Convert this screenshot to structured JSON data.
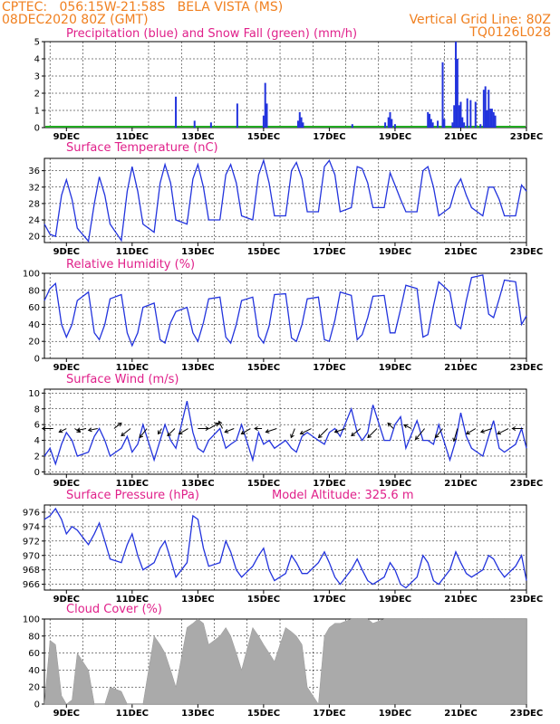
{
  "header": {
    "line1": "CPTEC:   056:15W-21:58S   BELA VISTA (MS)",
    "line2_left": "08DEC2020 80Z (GMT)",
    "line2_right": "Vertical Grid Line: 80Z",
    "line3_right": "TQ0126L028"
  },
  "colors": {
    "header": "#f08020",
    "title": "#e0208a",
    "line": "#2233dd",
    "snow": "#22aa22",
    "cloud": "#aaaaaa"
  },
  "x_ticks": [
    "9DEC",
    "11DEC",
    "13DEC",
    "15DEC",
    "17DEC",
    "19DEC",
    "21DEC",
    "23DEC"
  ],
  "x_range_days": [
    8.33,
    23.0
  ],
  "chart_data": [
    {
      "type": "bar",
      "title": "Precipitation (blue) and Snow Fall (green) (mm/h)",
      "ylim": [
        0,
        5
      ],
      "yticks": [
        0,
        1,
        2,
        3,
        4,
        5
      ],
      "series": [
        {
          "name": "precipitation",
          "x": [
            12.33,
            12.9,
            13.4,
            14.2,
            15.0,
            15.05,
            15.1,
            16.05,
            16.1,
            16.15,
            16.2,
            17.7,
            18.7,
            18.8,
            18.85,
            18.9,
            19.0,
            20.0,
            20.05,
            20.1,
            20.15,
            20.3,
            20.45,
            20.5,
            20.75,
            20.8,
            20.85,
            20.9,
            20.95,
            21.0,
            21.05,
            21.1,
            21.2,
            21.3,
            21.45,
            21.6,
            21.7,
            21.75,
            21.8,
            21.85,
            21.9,
            21.95,
            22.0,
            22.05
          ],
          "values": [
            1.8,
            0.4,
            0.3,
            1.4,
            0.7,
            2.6,
            1.4,
            0.4,
            0.9,
            0.6,
            0.3,
            0.2,
            0.3,
            0.6,
            0.9,
            0.5,
            0.2,
            0.9,
            0.8,
            0.5,
            0.3,
            0.4,
            3.8,
            0.5,
            0.3,
            1.3,
            5.0,
            4.0,
            1.3,
            1.5,
            0.6,
            0.3,
            1.7,
            1.6,
            1.5,
            0.2,
            2.2,
            2.4,
            1.0,
            2.2,
            1.1,
            1.1,
            0.9,
            0.7
          ]
        }
      ]
    },
    {
      "type": "line",
      "title": "Surface Temperature (nC)",
      "ylim": [
        18.5,
        39
      ],
      "yticks": [
        20,
        24,
        28,
        32,
        36
      ],
      "x": [
        8.33,
        8.5,
        8.67,
        8.85,
        9.0,
        9.17,
        9.33,
        9.67,
        9.85,
        10.0,
        10.17,
        10.33,
        10.67,
        10.85,
        11.0,
        11.17,
        11.33,
        11.67,
        11.85,
        12.0,
        12.17,
        12.33,
        12.67,
        12.85,
        13.0,
        13.17,
        13.33,
        13.67,
        13.85,
        14.0,
        14.17,
        14.33,
        14.67,
        14.85,
        15.0,
        15.17,
        15.33,
        15.67,
        15.85,
        16.0,
        16.17,
        16.33,
        16.67,
        16.85,
        17.0,
        17.17,
        17.33,
        17.67,
        17.85,
        18.0,
        18.17,
        18.33,
        18.67,
        18.85,
        19.0,
        19.17,
        19.33,
        19.67,
        19.85,
        20.0,
        20.17,
        20.33,
        20.67,
        20.85,
        21.0,
        21.17,
        21.33,
        21.67,
        21.85,
        22.0,
        22.17,
        22.33,
        22.67,
        22.85,
        23.0
      ],
      "values": [
        23.0,
        20.5,
        20.0,
        30.0,
        33.8,
        29.0,
        22.0,
        18.8,
        28.0,
        34.5,
        30.0,
        23.0,
        19.0,
        31.0,
        37.0,
        31.0,
        23.0,
        21.0,
        33.0,
        37.5,
        33.0,
        24.0,
        23.0,
        34.0,
        37.5,
        32.0,
        24.0,
        24.0,
        35.0,
        37.5,
        33.0,
        25.0,
        24.0,
        35.0,
        38.5,
        33.0,
        25.0,
        25.0,
        36.0,
        38.0,
        34.0,
        26.0,
        26.0,
        37.0,
        38.5,
        35.0,
        26.0,
        27.0,
        37.0,
        36.5,
        33.0,
        27.0,
        27.0,
        35.5,
        32.5,
        29.0,
        26.0,
        26.0,
        36.0,
        37.0,
        32.0,
        25.0,
        27.0,
        32.0,
        34.0,
        30.0,
        27.0,
        25.0,
        32.0,
        32.0,
        29.0,
        25.0,
        25.0,
        32.5,
        31.0
      ]
    },
    {
      "type": "line",
      "title": "Relative Humidity (%)",
      "ylim": [
        0,
        100
      ],
      "yticks": [
        0,
        20,
        40,
        60,
        80,
        100
      ],
      "x": [
        8.33,
        8.5,
        8.67,
        8.85,
        9.0,
        9.17,
        9.33,
        9.67,
        9.85,
        10.0,
        10.17,
        10.33,
        10.67,
        10.85,
        11.0,
        11.17,
        11.33,
        11.67,
        11.85,
        12.0,
        12.17,
        12.33,
        12.67,
        12.85,
        13.0,
        13.17,
        13.33,
        13.67,
        13.85,
        14.0,
        14.17,
        14.33,
        14.67,
        14.85,
        15.0,
        15.17,
        15.33,
        15.67,
        15.85,
        16.0,
        16.17,
        16.33,
        16.67,
        16.85,
        17.0,
        17.17,
        17.33,
        17.67,
        17.85,
        18.0,
        18.17,
        18.33,
        18.67,
        18.85,
        19.0,
        19.17,
        19.33,
        19.67,
        19.85,
        20.0,
        20.17,
        20.33,
        20.67,
        20.85,
        21.0,
        21.17,
        21.33,
        21.67,
        21.85,
        22.0,
        22.17,
        22.33,
        22.67,
        22.85,
        23.0
      ],
      "values": [
        68.0,
        82.0,
        88.0,
        40.0,
        25.0,
        40.0,
        68.0,
        78.0,
        30.0,
        22.0,
        40.0,
        70.0,
        75.0,
        30.0,
        15.0,
        30.0,
        60.0,
        65.0,
        22.0,
        18.0,
        42.0,
        55.0,
        60.0,
        30.0,
        20.0,
        42.0,
        70.0,
        72.0,
        25.0,
        18.0,
        40.0,
        68.0,
        72.0,
        26.0,
        18.0,
        38.0,
        75.0,
        76.0,
        24.0,
        20.0,
        40.0,
        70.0,
        72.0,
        22.0,
        20.0,
        45.0,
        78.0,
        74.0,
        22.0,
        28.0,
        48.0,
        73.0,
        74.0,
        30.0,
        30.0,
        58.0,
        86.0,
        82.0,
        25.0,
        28.0,
        62.0,
        90.0,
        78.0,
        40.0,
        35.0,
        68.0,
        95.0,
        98.0,
        52.0,
        48.0,
        70.0,
        92.0,
        90.0,
        40.0,
        50.0
      ]
    },
    {
      "type": "line",
      "title": "Surface Wind (m/s)",
      "ylim": [
        -0.3,
        10.5
      ],
      "yticks": [
        0,
        2,
        4,
        6,
        8,
        10
      ],
      "x": [
        8.33,
        8.5,
        8.67,
        8.85,
        9.0,
        9.17,
        9.33,
        9.67,
        9.85,
        10.0,
        10.17,
        10.33,
        10.67,
        10.85,
        11.0,
        11.17,
        11.33,
        11.67,
        11.85,
        12.0,
        12.17,
        12.33,
        12.67,
        12.85,
        13.0,
        13.17,
        13.33,
        13.67,
        13.85,
        14.0,
        14.17,
        14.33,
        14.67,
        14.85,
        15.0,
        15.17,
        15.33,
        15.67,
        15.85,
        16.0,
        16.17,
        16.33,
        16.67,
        16.85,
        17.0,
        17.17,
        17.33,
        17.67,
        17.85,
        18.0,
        18.17,
        18.33,
        18.67,
        18.85,
        19.0,
        19.17,
        19.33,
        19.67,
        19.85,
        20.0,
        20.17,
        20.33,
        20.67,
        20.85,
        21.0,
        21.17,
        21.33,
        21.67,
        21.85,
        22.0,
        22.17,
        22.33,
        22.67,
        22.85,
        23.0
      ],
      "values": [
        2.0,
        3.0,
        1.0,
        3.5,
        5.0,
        4.0,
        2.0,
        2.5,
        4.5,
        5.5,
        4.0,
        2.0,
        3.0,
        4.5,
        2.5,
        3.5,
        6.0,
        1.5,
        4.0,
        6.0,
        4.0,
        3.0,
        9.0,
        5.0,
        3.0,
        2.5,
        4.0,
        5.5,
        3.0,
        3.5,
        4.0,
        6.0,
        1.5,
        5.0,
        3.5,
        4.0,
        3.0,
        4.0,
        3.0,
        2.5,
        4.5,
        5.0,
        4.0,
        3.5,
        5.0,
        5.5,
        4.5,
        8.0,
        5.0,
        4.0,
        5.0,
        8.5,
        4.0,
        4.0,
        6.0,
        7.0,
        3.0,
        6.5,
        4.0,
        4.0,
        3.5,
        6.0,
        1.5,
        4.0,
        7.5,
        4.5,
        3.0,
        2.0,
        4.5,
        6.5,
        3.0,
        2.5,
        3.5,
        5.5,
        3.0
      ]
    },
    {
      "type": "line",
      "title": "Surface Pressure (hPa)",
      "annotation": "Model Altitude: 325.6 m",
      "ylim": [
        965.2,
        977
      ],
      "yticks": [
        966,
        968,
        970,
        972,
        974,
        976
      ],
      "x": [
        8.33,
        8.5,
        8.67,
        8.85,
        9.0,
        9.17,
        9.33,
        9.67,
        9.85,
        10.0,
        10.17,
        10.33,
        10.67,
        10.85,
        11.0,
        11.17,
        11.33,
        11.67,
        11.85,
        12.0,
        12.17,
        12.33,
        12.67,
        12.85,
        13.0,
        13.17,
        13.33,
        13.67,
        13.85,
        14.0,
        14.17,
        14.33,
        14.67,
        14.85,
        15.0,
        15.17,
        15.33,
        15.67,
        15.85,
        16.0,
        16.17,
        16.33,
        16.67,
        16.85,
        17.0,
        17.17,
        17.33,
        17.67,
        17.85,
        18.0,
        18.17,
        18.33,
        18.67,
        18.85,
        19.0,
        19.17,
        19.33,
        19.67,
        19.85,
        20.0,
        20.17,
        20.33,
        20.67,
        20.85,
        21.0,
        21.17,
        21.33,
        21.67,
        21.85,
        22.0,
        22.17,
        22.33,
        22.67,
        22.85,
        23.0
      ],
      "values": [
        975.0,
        975.5,
        976.5,
        975.0,
        973.0,
        974.0,
        973.5,
        971.5,
        973.0,
        974.5,
        972.0,
        969.5,
        969.0,
        971.5,
        973.0,
        970.0,
        968.0,
        969.0,
        971.0,
        972.0,
        969.5,
        967.0,
        969.0,
        975.5,
        975.0,
        971.0,
        968.5,
        969.0,
        972.0,
        970.5,
        968.0,
        967.0,
        968.5,
        970.0,
        971.0,
        968.0,
        966.5,
        967.5,
        970.0,
        969.0,
        967.5,
        967.5,
        969.0,
        970.5,
        969.0,
        967.0,
        966.0,
        968.0,
        969.5,
        968.0,
        966.5,
        966.0,
        967.0,
        969.0,
        968.0,
        966.0,
        965.5,
        967.0,
        970.0,
        969.0,
        966.5,
        966.0,
        968.0,
        970.5,
        969.0,
        967.5,
        967.0,
        968.0,
        970.0,
        969.5,
        968.0,
        967.0,
        968.5,
        970.0,
        966.5
      ]
    },
    {
      "type": "area",
      "title": "Cloud Cover (%)",
      "ylim": [
        0,
        100
      ],
      "yticks": [
        0,
        20,
        40,
        60,
        80,
        100
      ],
      "x": [
        8.33,
        8.5,
        8.67,
        8.85,
        9.0,
        9.17,
        9.33,
        9.67,
        9.85,
        10.0,
        10.17,
        10.33,
        10.67,
        10.85,
        11.0,
        11.17,
        11.33,
        11.67,
        11.85,
        12.0,
        12.17,
        12.33,
        12.67,
        12.85,
        13.0,
        13.17,
        13.33,
        13.67,
        13.85,
        14.0,
        14.17,
        14.33,
        14.67,
        14.85,
        15.0,
        15.17,
        15.33,
        15.67,
        15.85,
        16.0,
        16.17,
        16.33,
        16.67,
        16.85,
        17.0,
        17.17,
        17.33,
        17.67,
        17.85,
        18.0,
        18.17,
        18.33,
        18.67,
        18.85,
        19.0,
        19.17,
        19.33,
        19.67,
        19.85,
        20.0,
        20.17,
        20.33,
        20.67,
        20.85,
        21.0,
        21.17,
        21.33,
        21.67,
        21.85,
        22.0,
        22.17,
        22.33,
        22.67,
        22.85,
        23.0
      ],
      "values": [
        0,
        75,
        70,
        10,
        0,
        5,
        60,
        40,
        0,
        0,
        0,
        20,
        15,
        0,
        0,
        0,
        0,
        80,
        70,
        60,
        40,
        20,
        90,
        95,
        100,
        95,
        70,
        80,
        90,
        80,
        60,
        40,
        90,
        80,
        70,
        60,
        50,
        90,
        85,
        80,
        70,
        20,
        0,
        80,
        90,
        95,
        95,
        100,
        100,
        100,
        100,
        95,
        100,
        100,
        100,
        100,
        100,
        100,
        100,
        100,
        100,
        100,
        100,
        100,
        100,
        100,
        100,
        100,
        100,
        100,
        100,
        100,
        100,
        100,
        100
      ]
    }
  ],
  "wind_barbs": {
    "x": [
      8.6,
      9.0,
      9.25,
      9.6,
      9.95,
      10.45,
      10.95,
      11.45,
      11.9,
      12.3,
      12.7,
      13.0,
      13.35,
      13.75,
      14.1,
      14.6,
      14.95,
      15.4,
      15.95,
      16.45,
      16.95,
      17.5,
      17.95,
      18.45,
      18.95,
      19.5,
      19.9,
      20.45,
      20.9,
      21.45,
      21.95,
      22.45,
      22.9
    ],
    "dx": [
      -6,
      -4,
      3,
      -5,
      -5,
      4,
      -5,
      -4,
      -2,
      -4,
      -5,
      6,
      5,
      -2,
      -5,
      -5,
      -4,
      -6,
      -2,
      -6,
      -5,
      -6,
      -5,
      -5,
      -3,
      -4,
      -5,
      -4,
      -2,
      -5,
      -6,
      -6,
      -6
    ],
    "dy": [
      0,
      2,
      2,
      1,
      1,
      -3,
      4,
      5,
      3,
      4,
      3,
      0,
      -3,
      -4,
      2,
      3,
      0,
      2,
      5,
      3,
      5,
      2,
      4,
      5,
      -3,
      -2,
      6,
      5,
      7,
      3,
      2,
      3,
      0
    ]
  }
}
